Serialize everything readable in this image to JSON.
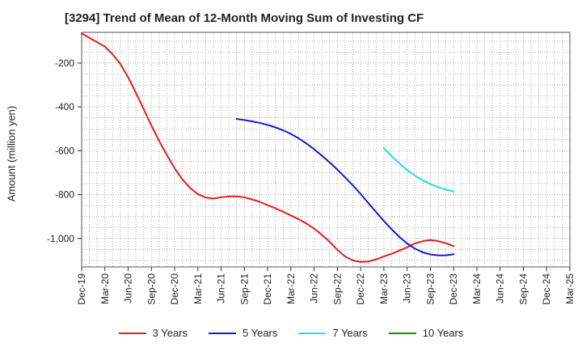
{
  "chart_data": {
    "type": "line",
    "title": "[3294]  Trend of Mean of 12-Month Moving Sum of Investing CF",
    "xlabel": "",
    "ylabel": "Amount (million yen)",
    "ylim": [
      -1130,
      -60
    ],
    "yticks": [
      -200,
      -400,
      -600,
      -800,
      -1000
    ],
    "ytick_labels": [
      "-200",
      "-400",
      "-600",
      "-800",
      "-1,000"
    ],
    "xtick_labels": [
      "Dec-19",
      "Mar-20",
      "Jun-20",
      "Sep-20",
      "Dec-20",
      "Mar-21",
      "Jun-21",
      "Sep-21",
      "Dec-21",
      "Mar-22",
      "Jun-22",
      "Sep-22",
      "Dec-22",
      "Mar-23",
      "Jun-23",
      "Sep-23",
      "Dec-23",
      "Mar-24",
      "Jun-24",
      "Sep-24",
      "Dec-24",
      "Mar-25"
    ],
    "grid": true,
    "legend_position": "bottom",
    "series": [
      {
        "name": "3 Years",
        "color": "#e02020",
        "points": [
          [
            0,
            -65
          ],
          [
            0.33,
            -85
          ],
          [
            0.67,
            -105
          ],
          [
            1,
            -125
          ],
          [
            1.33,
            -160
          ],
          [
            1.67,
            -205
          ],
          [
            2,
            -265
          ],
          [
            2.33,
            -335
          ],
          [
            2.67,
            -410
          ],
          [
            3,
            -485
          ],
          [
            3.33,
            -555
          ],
          [
            3.67,
            -620
          ],
          [
            4,
            -680
          ],
          [
            4.33,
            -730
          ],
          [
            4.67,
            -770
          ],
          [
            5,
            -798
          ],
          [
            5.33,
            -813
          ],
          [
            5.67,
            -818
          ],
          [
            6,
            -812
          ],
          [
            6.33,
            -808
          ],
          [
            6.67,
            -808
          ],
          [
            7,
            -812
          ],
          [
            7.33,
            -822
          ],
          [
            7.67,
            -833
          ],
          [
            8,
            -848
          ],
          [
            8.33,
            -862
          ],
          [
            8.67,
            -878
          ],
          [
            9,
            -895
          ],
          [
            9.33,
            -912
          ],
          [
            9.67,
            -932
          ],
          [
            10,
            -955
          ],
          [
            10.33,
            -983
          ],
          [
            10.67,
            -1015
          ],
          [
            11,
            -1052
          ],
          [
            11.33,
            -1082
          ],
          [
            11.67,
            -1100
          ],
          [
            12,
            -1107
          ],
          [
            12.33,
            -1105
          ],
          [
            12.67,
            -1095
          ],
          [
            13,
            -1082
          ],
          [
            13.33,
            -1070
          ],
          [
            13.67,
            -1055
          ],
          [
            14,
            -1040
          ],
          [
            14.33,
            -1023
          ],
          [
            14.67,
            -1012
          ],
          [
            15,
            -1007
          ],
          [
            15.33,
            -1012
          ],
          [
            15.67,
            -1022
          ],
          [
            16,
            -1035
          ]
        ]
      },
      {
        "name": "5 Years",
        "color": "#1a1acc",
        "points": [
          [
            6.67,
            -455
          ],
          [
            7,
            -460
          ],
          [
            7.33,
            -466
          ],
          [
            7.67,
            -473
          ],
          [
            8,
            -482
          ],
          [
            8.33,
            -493
          ],
          [
            8.67,
            -507
          ],
          [
            9,
            -523
          ],
          [
            9.33,
            -543
          ],
          [
            9.67,
            -567
          ],
          [
            10,
            -593
          ],
          [
            10.33,
            -622
          ],
          [
            10.67,
            -653
          ],
          [
            11,
            -686
          ],
          [
            11.33,
            -721
          ],
          [
            11.67,
            -758
          ],
          [
            12,
            -797
          ],
          [
            12.33,
            -838
          ],
          [
            12.67,
            -880
          ],
          [
            13,
            -920
          ],
          [
            13.33,
            -958
          ],
          [
            13.67,
            -993
          ],
          [
            14,
            -1023
          ],
          [
            14.33,
            -1046
          ],
          [
            14.67,
            -1063
          ],
          [
            15,
            -1073
          ],
          [
            15.33,
            -1077
          ],
          [
            15.67,
            -1077
          ],
          [
            16,
            -1072
          ]
        ]
      },
      {
        "name": "7 Years",
        "color": "#22e0ee",
        "points": [
          [
            13,
            -588
          ],
          [
            13.33,
            -625
          ],
          [
            13.67,
            -658
          ],
          [
            14,
            -688
          ],
          [
            14.33,
            -713
          ],
          [
            14.67,
            -735
          ],
          [
            15,
            -752
          ],
          [
            15.33,
            -766
          ],
          [
            15.67,
            -777
          ],
          [
            16,
            -786
          ]
        ]
      },
      {
        "name": "10 Years",
        "color": "#1a8a1a",
        "points": []
      }
    ]
  }
}
